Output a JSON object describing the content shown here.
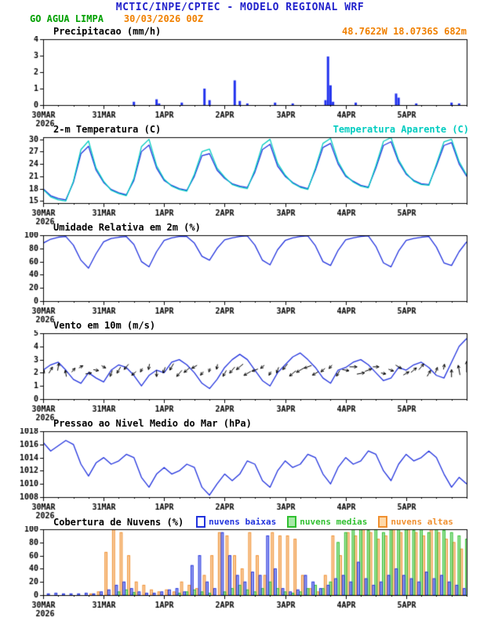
{
  "header": {
    "title": "MCTIC/INPE/CPTEC - MODELO REGIONAL WRF",
    "station": "GO AGUA LIMPA",
    "run": "30/03/2026 00Z",
    "coords": "48.7622W 18.0736S 682m"
  },
  "colors": {
    "title_blue": "#2222cc",
    "station_green": "#00a000",
    "run_orange": "#f08000",
    "line_blue": "#2233dd",
    "apparent_cyan": "#00ccc0",
    "precip_bar_blue": "#2233ee",
    "cloud_low_blue": "#2233dd",
    "cloud_mid_green": "#30c030",
    "cloud_high_orange": "#f09030",
    "axis_black": "#000000"
  },
  "time_axis": {
    "hours": 168,
    "day_ticks": [
      0,
      24,
      48,
      72,
      96,
      120,
      144
    ],
    "labels": [
      "30MAR",
      "31MAR",
      "1APR",
      "2APR",
      "3APR",
      "4APR",
      "5APR"
    ],
    "year_label": "2026",
    "minor_step": 6
  },
  "chart_data": [
    {
      "id": "precipitation",
      "type": "bar",
      "title": "Precipitacao (mm/h)",
      "ylim": [
        0,
        4
      ],
      "yticks": [
        0,
        1,
        2,
        3,
        4
      ],
      "unit": "mm/h",
      "bar_color": "#2233ee",
      "points": [
        [
          36,
          0.2
        ],
        [
          45,
          0.35
        ],
        [
          46,
          0.1
        ],
        [
          55,
          0.15
        ],
        [
          64,
          1.0
        ],
        [
          66,
          0.3
        ],
        [
          76,
          1.5
        ],
        [
          78,
          0.25
        ],
        [
          81,
          0.1
        ],
        [
          92,
          0.15
        ],
        [
          99,
          0.1
        ],
        [
          112,
          0.3
        ],
        [
          113,
          2.95
        ],
        [
          114,
          1.2
        ],
        [
          115,
          0.2
        ],
        [
          124,
          0.15
        ],
        [
          140,
          0.7
        ],
        [
          141,
          0.45
        ],
        [
          148,
          0.1
        ],
        [
          162,
          0.15
        ],
        [
          165,
          0.1
        ]
      ]
    },
    {
      "id": "temperature-2m",
      "type": "line",
      "title": "2-m Temperatura (C)",
      "ylim": [
        14.5,
        30.5
      ],
      "yticks": [
        15,
        18,
        21,
        24,
        27,
        30
      ],
      "unit": "C",
      "series": [
        {
          "name": "2-m Temperatura (C)",
          "color": "#2233dd",
          "step": 3,
          "values": [
            18.0,
            16.3,
            15.6,
            15.3,
            19.5,
            26.5,
            28.3,
            22.5,
            19.5,
            17.8,
            17.0,
            16.5,
            20.0,
            27.0,
            28.6,
            23.0,
            20.0,
            18.8,
            18.0,
            17.6,
            21.0,
            26.0,
            26.5,
            22.5,
            20.5,
            19.2,
            18.6,
            18.3,
            22.0,
            27.5,
            28.8,
            23.5,
            21.0,
            19.5,
            18.5,
            18.0,
            22.5,
            28.0,
            29.0,
            24.0,
            21.0,
            19.8,
            18.8,
            18.4,
            23.0,
            28.5,
            29.4,
            24.5,
            21.5,
            20.0,
            19.2,
            19.0,
            23.5,
            28.5,
            29.2,
            24.0,
            21.0
          ]
        },
        {
          "name": "Temperatura Aparente (C)",
          "color": "#00ccc0",
          "step": 3,
          "values": [
            17.8,
            16.0,
            15.3,
            15.0,
            19.8,
            27.5,
            29.6,
            23.0,
            19.8,
            17.6,
            16.8,
            16.3,
            20.5,
            28.2,
            30.0,
            23.6,
            20.3,
            18.6,
            17.8,
            17.4,
            21.5,
            27.0,
            27.6,
            23.0,
            20.8,
            19.0,
            18.4,
            18.0,
            22.6,
            28.6,
            30.0,
            24.2,
            21.3,
            19.3,
            18.3,
            17.8,
            23.0,
            29.0,
            30.2,
            24.6,
            21.3,
            19.6,
            18.6,
            18.2,
            23.6,
            29.5,
            30.4,
            25.0,
            21.8,
            19.8,
            19.0,
            18.8,
            24.0,
            29.4,
            30.0,
            24.6,
            21.3
          ]
        }
      ]
    },
    {
      "id": "relative-humidity-2m",
      "type": "line",
      "title": "Umidade Relativa em 2m (%)",
      "ylim": [
        0,
        100
      ],
      "yticks": [
        0,
        20,
        40,
        60,
        80,
        100
      ],
      "unit": "%",
      "series": [
        {
          "name": "Umidade Relativa em 2m (%)",
          "color": "#2233dd",
          "step": 3,
          "values": [
            88,
            94,
            97,
            98,
            85,
            62,
            50,
            72,
            90,
            95,
            97,
            98,
            86,
            60,
            52,
            75,
            92,
            96,
            98,
            98,
            88,
            68,
            62,
            80,
            93,
            96,
            98,
            99,
            85,
            62,
            55,
            78,
            92,
            96,
            98,
            99,
            84,
            60,
            54,
            77,
            93,
            96,
            98,
            99,
            83,
            58,
            52,
            76,
            92,
            95,
            97,
            98,
            82,
            58,
            54,
            75,
            90
          ]
        }
      ]
    },
    {
      "id": "wind-10m",
      "type": "wind",
      "title": "Vento em 10m (m/s)",
      "ylim": [
        0,
        5
      ],
      "yticks": [
        0,
        1,
        2,
        3,
        4,
        5
      ],
      "unit": "m/s",
      "series": [
        {
          "name": "Vento em 10m (m/s)",
          "color": "#2233dd",
          "step": 3,
          "values": [
            2.2,
            2.6,
            2.8,
            2.2,
            1.5,
            1.2,
            2.0,
            1.6,
            1.3,
            2.2,
            2.6,
            2.4,
            1.8,
            1.0,
            1.8,
            2.2,
            2.0,
            2.8,
            3.0,
            2.6,
            2.0,
            1.2,
            0.8,
            1.5,
            2.4,
            3.0,
            3.4,
            3.0,
            2.2,
            1.4,
            1.0,
            2.0,
            2.6,
            3.2,
            3.5,
            3.0,
            2.4,
            1.6,
            1.2,
            2.2,
            2.4,
            2.8,
            3.0,
            2.6,
            2.0,
            1.4,
            1.6,
            2.4,
            2.2,
            2.6,
            2.8,
            2.4,
            1.8,
            1.6,
            2.8,
            4.0,
            4.6
          ]
        }
      ],
      "arrows": {
        "anchor_value": 2.2,
        "color": "#000000",
        "directions_deg": [
          20,
          30,
          10,
          350,
          40,
          60,
          80,
          100,
          120,
          200,
          210,
          220,
          230,
          210,
          190,
          180,
          200,
          210,
          220,
          230,
          240,
          220,
          200,
          190,
          210,
          220,
          230,
          240,
          250,
          230,
          210,
          200,
          220,
          230,
          240,
          250,
          240,
          230,
          220,
          210,
          100,
          90,
          80,
          70,
          90,
          100,
          110,
          120,
          60,
          50,
          40,
          30,
          20,
          10,
          0,
          350,
          0
        ]
      }
    },
    {
      "id": "mean-sea-level-pressure",
      "type": "line",
      "title": "Pressao ao Nivel Medio do Mar (hPa)",
      "ylim": [
        1008,
        1018
      ],
      "yticks": [
        1008,
        1010,
        1012,
        1014,
        1016,
        1018
      ],
      "unit": "hPa",
      "series": [
        {
          "name": "Pressao ao Nivel Medio do Mar (hPa)",
          "color": "#2233dd",
          "step": 3,
          "values": [
            1016.3,
            1015.0,
            1015.8,
            1016.6,
            1016.0,
            1013.0,
            1011.2,
            1013.2,
            1014.0,
            1013.0,
            1013.5,
            1014.5,
            1014.0,
            1011.0,
            1009.5,
            1011.5,
            1012.5,
            1011.5,
            1012.0,
            1013.0,
            1012.5,
            1009.5,
            1008.3,
            1010.0,
            1011.5,
            1010.5,
            1011.5,
            1013.5,
            1013.0,
            1010.5,
            1009.5,
            1012.0,
            1013.5,
            1012.5,
            1013.0,
            1014.5,
            1014.0,
            1011.5,
            1010.0,
            1012.5,
            1014.0,
            1013.0,
            1013.5,
            1015.0,
            1014.5,
            1012.0,
            1010.5,
            1013.0,
            1014.5,
            1013.5,
            1014.0,
            1015.0,
            1014.0,
            1011.5,
            1009.5,
            1011.0,
            1010.0
          ]
        }
      ]
    },
    {
      "id": "cloud-cover",
      "type": "grouped-bar",
      "title": "Cobertura de Nuvens (%)",
      "ylim": [
        0,
        100
      ],
      "yticks": [
        0,
        20,
        40,
        60,
        80,
        100
      ],
      "unit": "%",
      "series": [
        {
          "name": "nuvens baixas",
          "color": "#2233dd",
          "step": 3,
          "values": [
            2,
            2,
            3,
            2,
            2,
            2,
            3,
            2,
            5,
            8,
            15,
            20,
            10,
            5,
            3,
            3,
            5,
            8,
            10,
            5,
            45,
            60,
            20,
            10,
            95,
            60,
            30,
            20,
            35,
            30,
            90,
            40,
            10,
            5,
            8,
            30,
            20,
            10,
            15,
            25,
            30,
            20,
            50,
            25,
            15,
            20,
            30,
            40,
            30,
            25,
            20,
            35,
            25,
            30,
            20,
            15,
            10
          ]
        },
        {
          "name": "nuvens medias",
          "color": "#30c030",
          "step": 3,
          "values": [
            0,
            0,
            0,
            0,
            0,
            0,
            0,
            0,
            0,
            0,
            5,
            8,
            4,
            0,
            0,
            0,
            0,
            0,
            3,
            5,
            8,
            5,
            3,
            0,
            5,
            10,
            15,
            8,
            5,
            10,
            20,
            10,
            5,
            3,
            5,
            10,
            15,
            10,
            20,
            80,
            95,
            100,
            100,
            98,
            100,
            95,
            100,
            100,
            100,
            98,
            100,
            95,
            100,
            98,
            95,
            90,
            85
          ]
        },
        {
          "name": "nuvens altas",
          "color": "#f09030",
          "step": 3,
          "values": [
            0,
            0,
            0,
            0,
            0,
            0,
            2,
            5,
            65,
            100,
            95,
            60,
            20,
            15,
            8,
            5,
            8,
            5,
            20,
            15,
            10,
            30,
            60,
            95,
            90,
            60,
            40,
            95,
            60,
            30,
            95,
            90,
            90,
            85,
            30,
            10,
            5,
            30,
            90,
            60,
            95,
            90,
            100,
            95,
            85,
            90,
            100,
            95,
            100,
            95,
            90,
            100,
            95,
            85,
            80,
            70,
            60
          ]
        }
      ]
    }
  ]
}
